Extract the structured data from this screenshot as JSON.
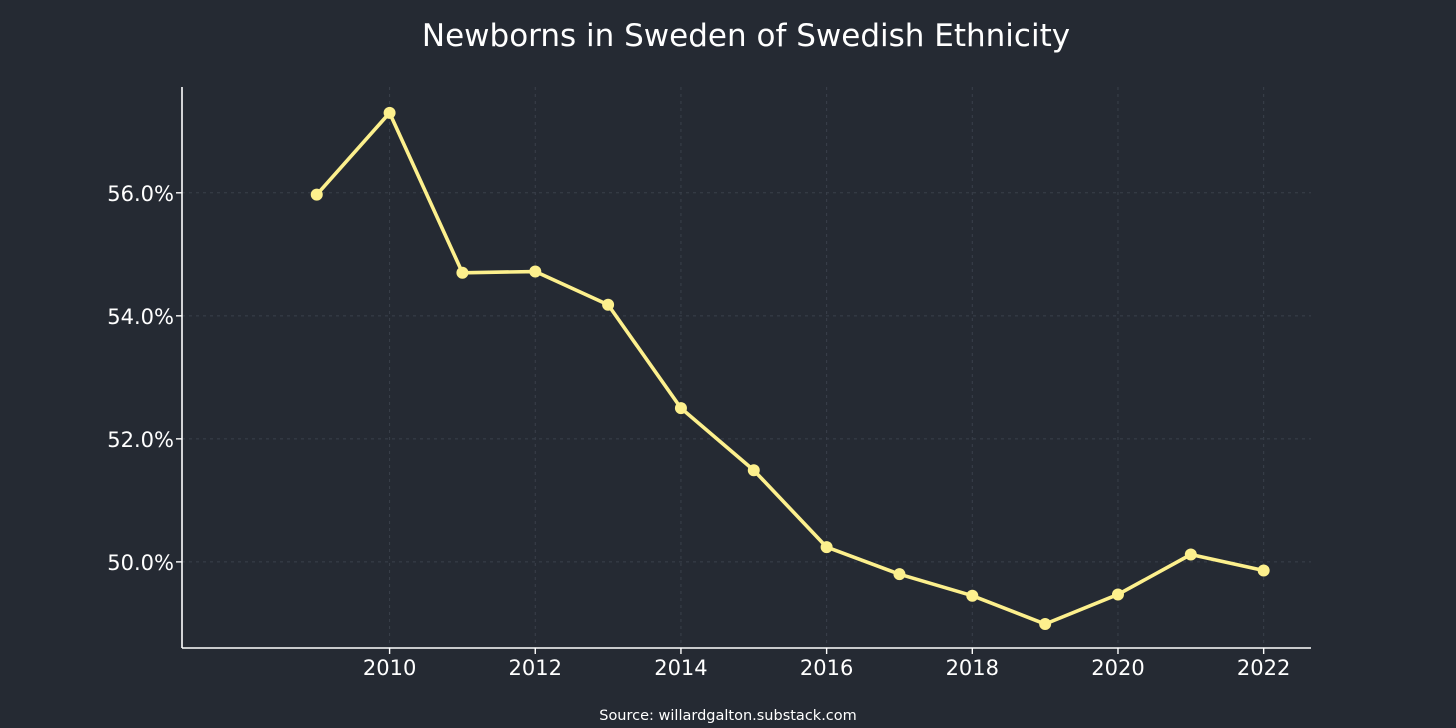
{
  "chart_data": {
    "type": "line",
    "title": "Newborns in Sweden of Swedish Ethnicity",
    "xlabel": "",
    "ylabel": "",
    "x": [
      2009,
      2010,
      2011,
      2012,
      2013,
      2014,
      2015,
      2016,
      2017,
      2018,
      2019,
      2020,
      2021,
      2022
    ],
    "series": [
      {
        "values": [
          55.97,
          57.3,
          54.7,
          54.72,
          54.18,
          52.5,
          51.49,
          50.24,
          49.8,
          49.45,
          48.99,
          49.47,
          50.12,
          49.86
        ]
      }
    ],
    "xlim": [
      2007.15,
      2022.65
    ],
    "ylim": [
      48.6,
      57.72
    ],
    "x_ticks": [
      2010,
      2012,
      2014,
      2016,
      2018,
      2020,
      2022
    ],
    "x_tick_labels": [
      "2010",
      "2012",
      "2014",
      "2016",
      "2018",
      "2020",
      "2022"
    ],
    "y_ticks": [
      50,
      52,
      54,
      56
    ],
    "y_tick_labels": [
      "50.0%",
      "52.0%",
      "54.0%",
      "56.0%"
    ],
    "grid": true,
    "colors": {
      "background": "#252a33",
      "line": "#fdf08d",
      "text": "#ffffff",
      "grid": "#3a404b"
    }
  },
  "source": "Source: willardgalton.substack.com"
}
